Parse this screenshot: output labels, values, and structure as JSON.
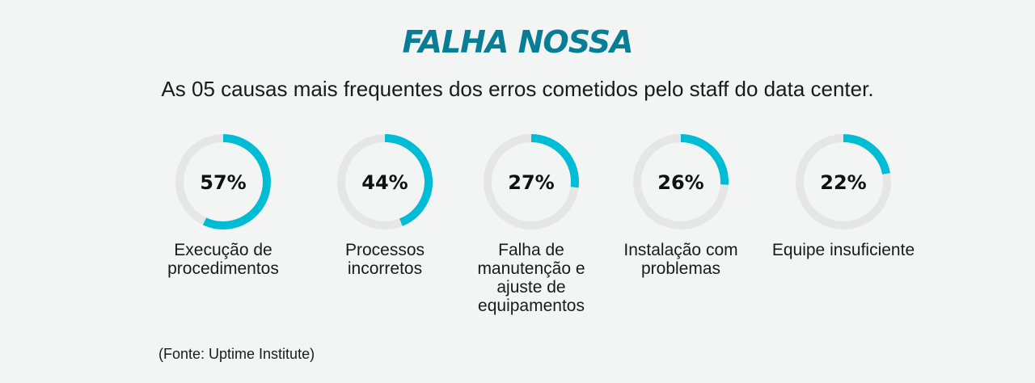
{
  "header": {
    "title": "FALHA NOSSA",
    "subtitle": "As 05 causas mais frequentes dos erros cometidos pelo staff do data center."
  },
  "chart_data": {
    "type": "pie",
    "title": "FALHA NOSSA",
    "subtitle": "As 05 causas mais frequentes dos erros cometidos pelo staff do data center.",
    "items": [
      {
        "label": "Execução de procedimentos",
        "value": 57,
        "display": "57%"
      },
      {
        "label": "Processos incorretos",
        "value": 44,
        "display": "44%"
      },
      {
        "label": "Falha de manutenção e ajuste de equipamentos",
        "value": 27,
        "display": "27%"
      },
      {
        "label": "Instalação com problemas",
        "value": 26,
        "display": "26%"
      },
      {
        "label": "Equipe insuficiente",
        "value": 22,
        "display": "22%"
      }
    ],
    "colors": {
      "accent": "#00bcd4",
      "track": "#e6e6e6",
      "title": "#087d96"
    }
  },
  "footer": {
    "source": "(Fonte: Uptime Institute)"
  }
}
